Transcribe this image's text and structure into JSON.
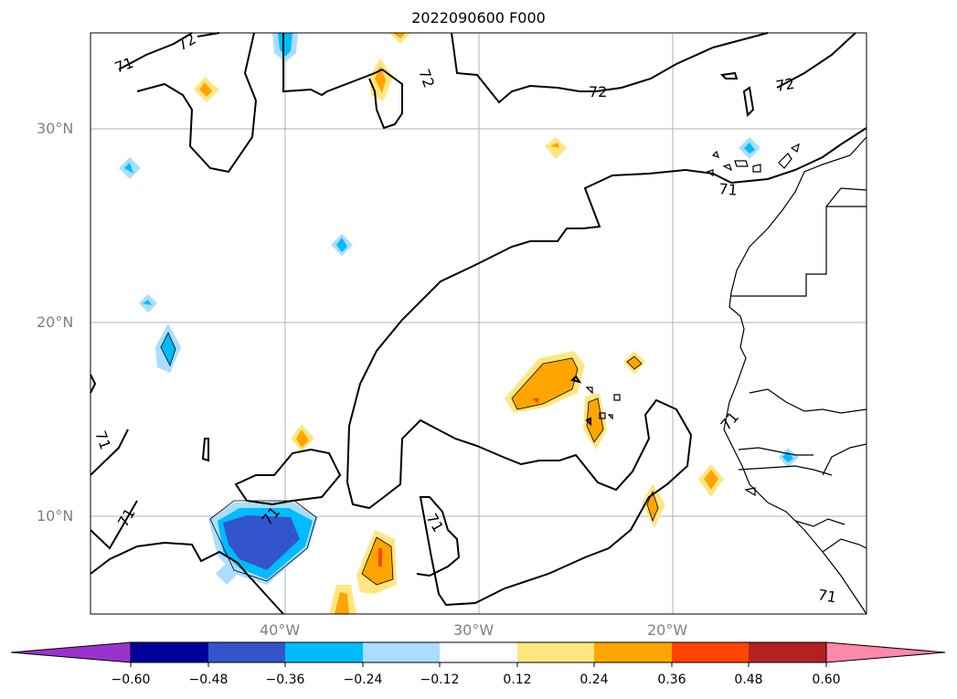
{
  "title": "2022090600 F000",
  "axes": {
    "lat_labels": [
      "30°N",
      "20°N",
      "10°N"
    ],
    "lon_labels": [
      "40°W",
      "30°W",
      "20°W"
    ]
  },
  "contour_labels": [
    "72",
    "71"
  ],
  "colorbar": {
    "ticks": [
      "−0.60",
      "−0.48",
      "−0.36",
      "−0.24",
      "−0.12",
      "0.12",
      "0.24",
      "0.36",
      "0.48",
      "0.60"
    ],
    "colors": [
      "#9933cc",
      "#000099",
      "#3355cc",
      "#00bbff",
      "#aaddff",
      "#ffffff",
      "#ffe680",
      "#ffa500",
      "#ff4400",
      "#b22222",
      "#ff88aa"
    ]
  }
}
